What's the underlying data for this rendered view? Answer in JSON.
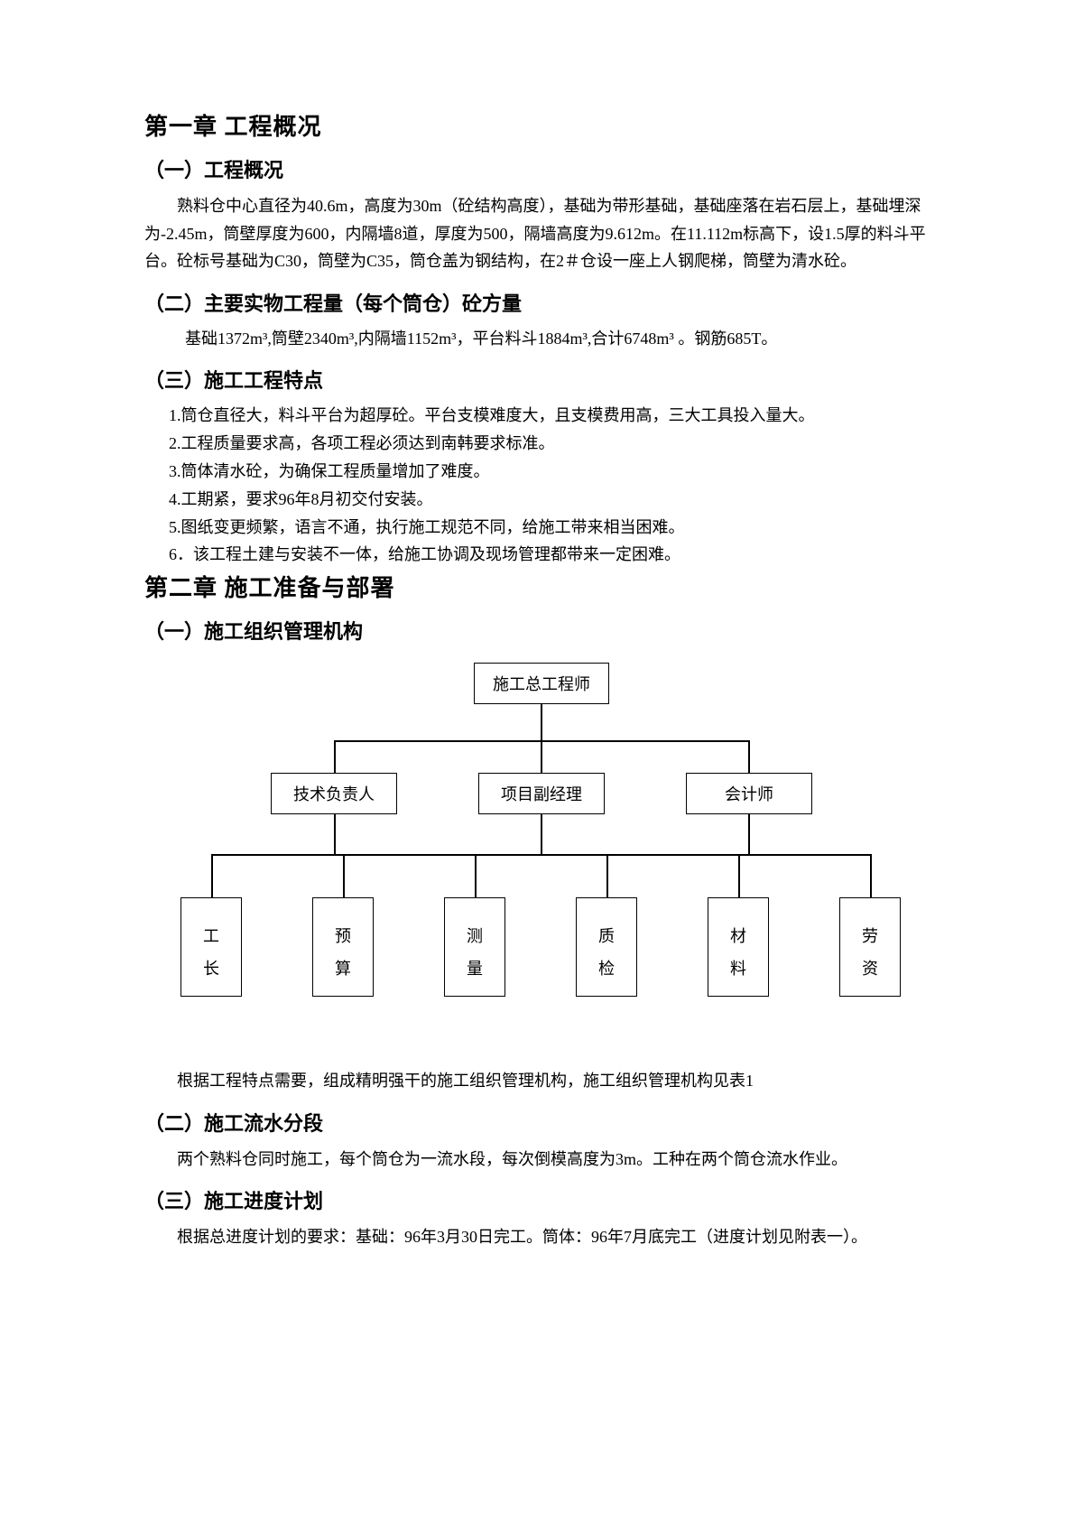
{
  "ch1": {
    "title": "第一章 工程概况",
    "s1": {
      "title": "（一）工程概况",
      "p1": "熟料仓中心直径为40.6m，高度为30m（砼结构高度），基础为带形基础，基础座落在岩石层上，基础埋深为-2.45m，筒壁厚度为600，内隔墙8道，厚度为500，隔墙高度为9.612m。在11.112m标高下，设1.5厚的料斗平台。砼标号基础为C30，筒壁为C35，筒仓盖为钢结构，在2＃仓设一座上人钢爬梯，筒壁为清水砼。"
    },
    "s2": {
      "title": "（二）主要实物工程量（每个筒仓）砼方量",
      "p1": "基础1372m³,筒壁2340m³,内隔墙1152m³，平台料斗1884m³,合计6748m³ 。钢筋685T。"
    },
    "s3": {
      "title": "（三）施工工程特点",
      "items": [
        "1.筒仓直径大，料斗平台为超厚砼。平台支模难度大，且支模费用高，三大工具投入量大。",
        "2.工程质量要求高，各项工程必须达到南韩要求标准。",
        "3.筒体清水砼，为确保工程质量增加了难度。",
        "4.工期紧，要求96年8月初交付安装。",
        "5.图纸变更频繁，语言不通，执行施工规范不同，给施工带来相当困难。",
        "6．该工程土建与安装不一体，给施工协调及现场管理都带来一定困难。"
      ]
    }
  },
  "ch2": {
    "title": "第二章 施工准备与部署",
    "s1": {
      "title": "（一）施工组织管理机构",
      "org": {
        "top": "施工总工程师",
        "mid": [
          "技术负责人",
          "项目副经理",
          "会计师"
        ],
        "bot": [
          "工长",
          "预算",
          "测量",
          "质检",
          "材料",
          "劳资"
        ]
      },
      "caption": "根据工程特点需要，组成精明强干的施工组织管理机构，施工组织管理机构见表1"
    },
    "s2": {
      "title": "（二）施工流水分段",
      "p1": "两个熟料仓同时施工，每个筒仓为一流水段，每次倒模高度为3m。工种在两个筒仓流水作业。"
    },
    "s3": {
      "title": "（三）施工进度计划",
      "p1": "根据总进度计划的要求：基础：96年3月30日完工。筒体：96年7月底完工（进度计划见附表一）。"
    }
  }
}
